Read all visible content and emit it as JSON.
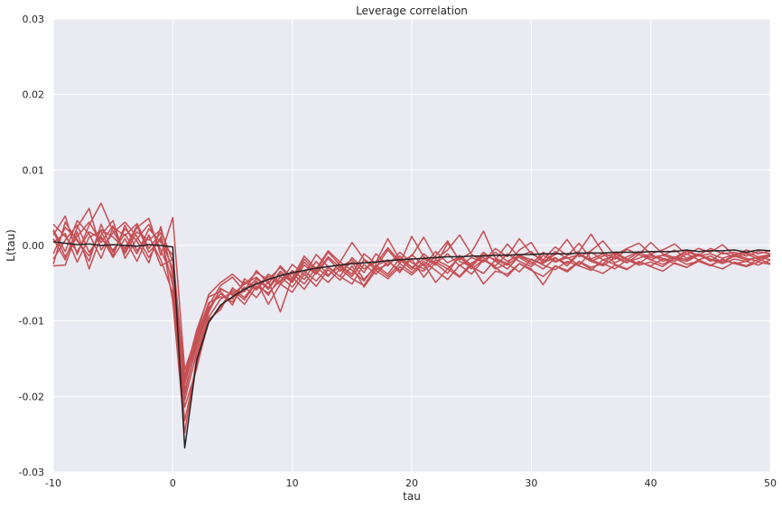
{
  "chart_data": {
    "type": "line",
    "title": "Leverage correlation",
    "xlabel": "tau",
    "ylabel": "L(tau)",
    "xlim": [
      -10,
      50
    ],
    "ylim": [
      -0.03,
      0.03
    ],
    "xticks": [
      -10,
      0,
      10,
      20,
      30,
      40,
      50
    ],
    "yticks": [
      -0.03,
      -0.02,
      -0.01,
      0.0,
      0.01,
      0.02,
      0.03
    ],
    "xtick_labels": [
      "-10",
      "0",
      "10",
      "20",
      "30",
      "40",
      "50"
    ],
    "ytick_labels": [
      "-0.03",
      "-0.02",
      "-0.01",
      "0.00",
      "0.01",
      "0.02",
      "0.03"
    ],
    "grid": true,
    "background_color": "#EAEAF2",
    "grid_color": "#FFFFFF",
    "x": [
      -10,
      -9,
      -8,
      -7,
      -6,
      -5,
      -4,
      -3,
      -2,
      -1,
      0,
      1,
      2,
      3,
      4,
      5,
      6,
      7,
      8,
      9,
      10,
      11,
      12,
      13,
      14,
      15,
      16,
      17,
      18,
      19,
      20,
      21,
      22,
      23,
      24,
      25,
      26,
      27,
      28,
      29,
      30,
      31,
      32,
      33,
      34,
      35,
      36,
      37,
      38,
      39,
      40,
      41,
      42,
      43,
      44,
      45,
      46,
      47,
      48,
      49,
      50
    ],
    "series": [
      {
        "color": "#C44E52",
        "values": [
          0.0028,
          0.0012,
          -0.0008,
          0.0018,
          0.0009,
          -0.0006,
          0.0015,
          -0.0011,
          0.0022,
          0.0004,
          -0.0012,
          -0.0178,
          -0.0121,
          -0.0076,
          -0.0068,
          -0.0071,
          -0.0048,
          -0.0059,
          -0.0041,
          -0.0052,
          -0.0033,
          -0.0045,
          -0.0021,
          -0.0039,
          -0.0028,
          -0.0041,
          -0.0019,
          -0.0032,
          -0.0025,
          -0.0014,
          -0.0029,
          -0.0018,
          -0.0024,
          -0.0011,
          -0.0027,
          -0.0016,
          -0.0022,
          -0.0009,
          -0.0021,
          -0.0013,
          -0.0019,
          -0.0024,
          -0.0008,
          -0.0017,
          -0.0012,
          -0.0021,
          -0.0014,
          -0.0011,
          -0.0019,
          -0.0009,
          -0.0016,
          -0.0013,
          -0.0018,
          -0.0008,
          -0.0014,
          -0.0011,
          -0.0017,
          -0.0012,
          -0.0009,
          -0.0015,
          -0.0012
        ]
      },
      {
        "color": "#C44E52",
        "values": [
          -0.0025,
          0.0031,
          0.0006,
          -0.0014,
          0.0021,
          0.0011,
          -0.0004,
          0.0026,
          -0.0009,
          0.0008,
          -0.0031,
          -0.0205,
          -0.0142,
          -0.0089,
          -0.0057,
          -0.0066,
          -0.0061,
          -0.0044,
          -0.0058,
          -0.0037,
          -0.0049,
          -0.0026,
          -0.0038,
          -0.0017,
          -0.0034,
          -0.0022,
          -0.0045,
          -0.0027,
          -0.0019,
          -0.0036,
          -0.0012,
          -0.0027,
          -0.0008,
          -0.0023,
          -0.0015,
          -0.0031,
          -0.0019,
          -0.0027,
          -0.0011,
          -0.0021,
          -0.0028,
          -0.0013,
          -0.0022,
          -0.0016,
          -0.0026,
          -0.0009,
          -0.0019,
          -0.0014,
          -0.0022,
          -0.0017,
          -0.0011,
          -0.0021,
          -0.0015,
          -0.0019,
          -0.0012,
          -0.0018,
          -0.0022,
          -0.0014,
          -0.0019,
          -0.0016,
          -0.0013
        ]
      },
      {
        "color": "#C44E52",
        "values": [
          0.0009,
          -0.0019,
          0.0024,
          0.0049,
          -0.0006,
          0.0017,
          0.0031,
          0.0012,
          -0.0016,
          0.0011,
          -0.0053,
          -0.0232,
          -0.0158,
          -0.0102,
          -0.0081,
          -0.0059,
          -0.0072,
          -0.0049,
          -0.0066,
          -0.0041,
          -0.0055,
          -0.0034,
          -0.0047,
          -0.0029,
          -0.0041,
          -0.0051,
          -0.0025,
          -0.0038,
          -0.0021,
          -0.0033,
          -0.0018,
          -0.0042,
          -0.0022,
          -0.0031,
          -0.0016,
          -0.0028,
          -0.0037,
          -0.0019,
          -0.0026,
          -0.0014,
          -0.0022,
          -0.0031,
          -0.0017,
          -0.0024,
          -0.0011,
          -0.0021,
          -0.0027,
          -0.0016,
          -0.0023,
          -0.0012,
          -0.0019,
          -0.0025,
          -0.0017,
          -0.0021,
          -0.0013,
          -0.0019,
          -0.0024,
          -0.0018,
          -0.0021,
          -0.0015,
          -0.0019
        ]
      },
      {
        "color": "#C44E52",
        "values": [
          0.0014,
          0.0039,
          -0.0012,
          0.0027,
          0.0056,
          0.0019,
          -0.0008,
          0.0024,
          0.0036,
          -0.0013,
          0.0037,
          -0.0165,
          -0.0118,
          -0.0065,
          -0.0049,
          -0.0038,
          -0.0052,
          -0.0036,
          -0.0045,
          -0.0029,
          -0.0047,
          -0.0018,
          -0.0034,
          -0.0009,
          -0.0026,
          -0.0038,
          -0.0011,
          -0.0024,
          -0.0003,
          -0.0021,
          -0.0014,
          0.0011,
          -0.0018,
          -0.0006,
          0.0014,
          -0.0012,
          -0.0021,
          -0.0004,
          -0.0015,
          0.0009,
          -0.0011,
          -0.0019,
          -0.0002,
          -0.0013,
          -0.0008,
          0.0015,
          -0.0009,
          -0.0018,
          -0.0005,
          -0.0012,
          0.0004,
          -0.0011,
          -0.0016,
          -0.0007,
          -0.0013,
          -0.0004,
          -0.0011,
          -0.0009,
          -0.0014,
          -0.0008,
          -0.0011
        ]
      },
      {
        "color": "#C44E52",
        "values": [
          -0.0027,
          -0.0026,
          0.0018,
          -0.0031,
          0.0012,
          -0.0016,
          0.0009,
          -0.0021,
          0.0014,
          -0.0027,
          -0.0018,
          -0.0191,
          -0.0135,
          -0.0083,
          -0.0064,
          -0.0075,
          -0.0055,
          -0.0069,
          -0.0047,
          -0.0088,
          -0.0042,
          -0.0058,
          -0.0035,
          -0.0049,
          -0.0031,
          -0.0044,
          -0.0053,
          -0.0029,
          -0.0041,
          -0.0024,
          -0.0036,
          -0.0021,
          -0.0033,
          -0.0045,
          -0.0026,
          -0.0038,
          -0.0019,
          -0.0029,
          -0.0041,
          -0.0024,
          -0.0031,
          -0.0052,
          -0.0027,
          -0.0033,
          -0.0021,
          -0.0029,
          -0.0024,
          -0.0031,
          -0.0019,
          -0.0026,
          -0.0022,
          -0.0028,
          -0.0017,
          -0.0025,
          -0.0021,
          -0.0027,
          -0.0018,
          -0.0024,
          -0.0021,
          -0.0026,
          -0.0019
        ]
      },
      {
        "color": "#C44E52",
        "values": [
          0.0021,
          -0.0008,
          0.0033,
          0.0015,
          -0.0017,
          0.0024,
          0.0013,
          0.0029,
          -0.0004,
          0.0017,
          -0.0074,
          -0.0248,
          -0.0149,
          -0.0095,
          -0.0071,
          -0.0062,
          -0.0078,
          -0.0054,
          -0.0063,
          -0.0046,
          -0.0037,
          -0.0051,
          -0.0029,
          -0.0041,
          -0.0022,
          -0.0033,
          -0.0047,
          -0.0026,
          -0.0038,
          -0.0017,
          -0.0029,
          -0.0034,
          -0.0019,
          -0.0027,
          -0.0041,
          -0.0023,
          -0.0016,
          -0.0031,
          -0.0024,
          -0.0035,
          -0.0018,
          -0.0026,
          -0.0032,
          -0.0021,
          -0.0027,
          -0.0033,
          -0.0019,
          -0.0025,
          -0.0031,
          -0.0022,
          -0.0027,
          -0.0018,
          -0.0024,
          -0.0029,
          -0.0021,
          -0.0026,
          -0.0019,
          -0.0024,
          -0.0028,
          -0.0022,
          -0.0025
        ]
      },
      {
        "color": "#C44E52",
        "values": [
          -0.0011,
          0.0024,
          0.0008,
          -0.0021,
          0.0028,
          -0.0009,
          0.0022,
          0.0006,
          -0.0023,
          0.0025,
          -0.0039,
          -0.0183,
          -0.0127,
          -0.0079,
          -0.0053,
          -0.0042,
          -0.0061,
          -0.0033,
          -0.0051,
          -0.0027,
          -0.0043,
          -0.0014,
          -0.0031,
          -0.0007,
          -0.0022,
          0.0004,
          -0.0018,
          -0.0029,
          -0.0006,
          -0.0024,
          0.0012,
          -0.0015,
          -0.0026,
          0.0003,
          -0.0019,
          -0.0009,
          0.0019,
          -0.0017,
          -0.0024,
          -0.0006,
          0.0004,
          -0.0021,
          -0.0012,
          0.0008,
          -0.0015,
          -0.0007,
          0.0006,
          -0.0013,
          -0.0004,
          0.0003,
          -0.0011,
          -0.0006,
          0.0002,
          -0.0012,
          -0.0004,
          -0.0009,
          0.0001,
          -0.0013,
          -0.0006,
          -0.0011,
          -0.0007
        ]
      },
      {
        "color": "#C44E52",
        "values": [
          0.0004,
          0.0016,
          -0.0022,
          0.0011,
          0.0019,
          -0.0014,
          0.0027,
          -0.0007,
          0.0012,
          -0.0019,
          -0.0063,
          -0.0214,
          -0.0163,
          -0.0098,
          -0.0085,
          -0.0056,
          -0.0069,
          -0.0047,
          -0.0078,
          -0.0051,
          -0.0062,
          -0.0038,
          -0.0054,
          -0.0032,
          -0.0046,
          -0.0027,
          -0.0055,
          -0.0033,
          -0.0044,
          -0.0028,
          -0.0039,
          -0.0024,
          -0.0049,
          -0.0031,
          -0.0042,
          -0.0026,
          -0.0051,
          -0.0034,
          -0.0038,
          -0.0024,
          -0.0033,
          -0.0041,
          -0.0027,
          -0.0035,
          -0.0022,
          -0.0031,
          -0.0037,
          -0.0026,
          -0.0032,
          -0.0021,
          -0.0028,
          -0.0034,
          -0.0023,
          -0.0029,
          -0.0019,
          -0.0026,
          -0.0031,
          -0.0022,
          -0.0027,
          -0.0018,
          -0.0024
        ]
      },
      {
        "color": "#C44E52",
        "values": [
          0.0019,
          -0.0015,
          0.0012,
          0.0031,
          0.0004,
          0.0026,
          -0.0011,
          0.0018,
          0.0007,
          0.0021,
          -0.0021,
          -0.0173,
          -0.0112,
          -0.0068,
          -0.0061,
          -0.0079,
          -0.0044,
          -0.0057,
          -0.0038,
          -0.0049,
          -0.0025,
          -0.0039,
          -0.0012,
          -0.0028,
          -0.0041,
          -0.0016,
          -0.0031,
          -0.0022,
          0.0009,
          -0.0019,
          -0.0032,
          -0.0011,
          -0.0024,
          -0.0037,
          -0.0013,
          -0.0026,
          -0.0009,
          -0.0021,
          -0.0031,
          -0.0014,
          -0.0008,
          -0.0023,
          -0.0016,
          -0.0027,
          -0.0011,
          -0.0019,
          -0.0025,
          -0.0009,
          -0.0018,
          -0.0024,
          -0.0013,
          -0.0017,
          -0.0021,
          -0.0011,
          -0.0019,
          -0.0014,
          -0.0022,
          -0.0012,
          -0.0017,
          -0.0021,
          -0.0014
        ]
      },
      {
        "color": "#C44E52",
        "values": [
          -0.0018,
          0.0007,
          0.0027,
          -0.0009,
          0.0014,
          0.0033,
          -0.0017,
          0.0009,
          0.0028,
          -0.0006,
          -0.0044,
          -0.0197,
          -0.0131,
          -0.0085,
          -0.0058,
          -0.0065,
          -0.0051,
          -0.0042,
          -0.0056,
          -0.0034,
          -0.0048,
          -0.0022,
          -0.0037,
          -0.0015,
          -0.0029,
          -0.0019,
          -0.0036,
          -0.0011,
          -0.0027,
          -0.0009,
          -0.0023,
          -0.0031,
          -0.0014,
          0.0006,
          -0.0021,
          -0.0028,
          -0.0012,
          -0.0019,
          0.0002,
          -0.0016,
          -0.0025,
          -0.0009,
          -0.0021,
          -0.0014,
          0.0003,
          -0.0018,
          -0.0011,
          -0.0023,
          -0.0015,
          -0.0008,
          -0.0019,
          -0.0013,
          -0.0006,
          -0.0017,
          -0.0011,
          -0.0021,
          -0.0009,
          -0.0015,
          -0.0011,
          -0.0018,
          -0.0013
        ]
      },
      {
        "color": "#222222",
        "values": [
          0.0005,
          0.0003,
          0.0001,
          0.0002,
          0.0,
          0.0001,
          0.0,
          -0.0001,
          0.0001,
          0.0,
          -0.0002,
          -0.0268,
          -0.0152,
          -0.0102,
          -0.0079,
          -0.0068,
          -0.0058,
          -0.0051,
          -0.0045,
          -0.004,
          -0.0036,
          -0.0033,
          -0.003,
          -0.0028,
          -0.0026,
          -0.0024,
          -0.0023,
          -0.0022,
          -0.002,
          -0.0019,
          -0.0018,
          -0.0017,
          -0.0016,
          -0.0015,
          -0.0015,
          -0.0014,
          -0.0014,
          -0.0013,
          -0.0013,
          -0.0012,
          -0.0012,
          -0.0011,
          -0.0011,
          -0.0011,
          -0.001,
          -0.001,
          -0.001,
          -0.0009,
          -0.0009,
          -0.0009,
          -0.0008,
          -0.0008,
          -0.0008,
          -0.0006,
          -0.0008,
          -0.0007,
          -0.0007,
          -0.0006,
          -0.0009,
          -0.0006,
          -0.0007
        ]
      }
    ]
  }
}
